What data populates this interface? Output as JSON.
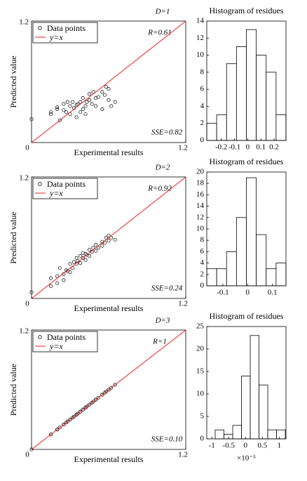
{
  "chart_data": [
    {
      "type": "scatter",
      "title": "D=1",
      "x_label": "Experimental results",
      "y_label": "Predicted value",
      "xlim": [
        0,
        1.2
      ],
      "ylim": [
        0,
        1.2
      ],
      "xticks": [
        0,
        1.2
      ],
      "yticks": [
        1.2
      ],
      "annotations": [
        "R=0.61",
        "SSE=0.82"
      ],
      "series": [
        {
          "name": "Data points",
          "color": "#000000",
          "x": [
            0,
            0.15,
            0.15,
            0.2,
            0.2,
            0.22,
            0.25,
            0.25,
            0.27,
            0.28,
            0.3,
            0.3,
            0.32,
            0.33,
            0.35,
            0.35,
            0.36,
            0.38,
            0.38,
            0.4,
            0.4,
            0.42,
            0.42,
            0.43,
            0.45,
            0.45,
            0.47,
            0.48,
            0.5,
            0.5,
            0.52,
            0.55,
            0.55,
            0.57,
            0.58,
            0.6,
            0.6,
            0.62,
            0.65
          ],
          "values": [
            0.23,
            0.28,
            0.3,
            0.35,
            0.33,
            0.22,
            0.38,
            0.32,
            0.3,
            0.4,
            0.36,
            0.28,
            0.4,
            0.34,
            0.37,
            0.25,
            0.38,
            0.4,
            0.3,
            0.44,
            0.33,
            0.36,
            0.28,
            0.4,
            0.48,
            0.42,
            0.38,
            0.5,
            0.44,
            0.36,
            0.45,
            0.5,
            0.33,
            0.47,
            0.55,
            0.42,
            0.53,
            0.36,
            0.4
          ]
        },
        {
          "name": "y=x",
          "color": "#e8231f",
          "x": [
            0,
            1.2
          ],
          "values": [
            0,
            1.2
          ]
        }
      ]
    },
    {
      "type": "histogram",
      "title": "Histogram of residues",
      "bins": [
        -0.31,
        -0.235,
        -0.16,
        -0.085,
        -0.01,
        0.065,
        0.14,
        0.215,
        0.29
      ],
      "values": [
        2,
        3,
        9,
        11,
        13,
        10,
        8,
        3
      ],
      "xlim": [
        -0.31,
        0.29
      ],
      "ylim": [
        0,
        14
      ],
      "xticks": [
        -0.2,
        -0.1,
        0,
        0.1,
        0.2
      ],
      "yticks": [
        0,
        2,
        4,
        6,
        8,
        10,
        12,
        14
      ]
    },
    {
      "type": "scatter",
      "title": "D=2",
      "x_label": "Experimental results",
      "y_label": "Predicted value",
      "xlim": [
        0,
        1.2
      ],
      "ylim": [
        0,
        1.2
      ],
      "xticks": [
        0,
        1.2
      ],
      "yticks": [
        1.2
      ],
      "annotations": [
        "R=0.92",
        "SSE=0.24"
      ],
      "series": [
        {
          "name": "Data points",
          "color": "#000000",
          "x": [
            0,
            0.15,
            0.15,
            0.2,
            0.2,
            0.22,
            0.25,
            0.25,
            0.27,
            0.28,
            0.3,
            0.3,
            0.32,
            0.33,
            0.35,
            0.35,
            0.36,
            0.38,
            0.38,
            0.4,
            0.4,
            0.42,
            0.42,
            0.43,
            0.45,
            0.45,
            0.47,
            0.48,
            0.5,
            0.5,
            0.52,
            0.55,
            0.55,
            0.57,
            0.58,
            0.6,
            0.6,
            0.62,
            0.65
          ],
          "values": [
            0.06,
            0.2,
            0.12,
            0.22,
            0.15,
            0.3,
            0.24,
            0.18,
            0.28,
            0.27,
            0.34,
            0.26,
            0.3,
            0.36,
            0.34,
            0.4,
            0.37,
            0.35,
            0.42,
            0.4,
            0.45,
            0.38,
            0.44,
            0.43,
            0.48,
            0.42,
            0.46,
            0.5,
            0.47,
            0.53,
            0.5,
            0.52,
            0.56,
            0.55,
            0.6,
            0.57,
            0.62,
            0.6,
            0.58
          ]
        },
        {
          "name": "y=x",
          "color": "#e8231f",
          "x": [
            0,
            1.2
          ],
          "values": [
            0,
            1.2
          ]
        }
      ]
    },
    {
      "type": "histogram",
      "title": "Histogram of residues",
      "bins": [
        -0.165,
        -0.125,
        -0.085,
        -0.045,
        -0.005,
        0.035,
        0.075,
        0.115,
        0.155
      ],
      "values": [
        3,
        3,
        6,
        12,
        19,
        9,
        3,
        4
      ],
      "xlim": [
        -0.165,
        0.155
      ],
      "ylim": [
        0,
        20
      ],
      "xticks": [
        -0.1,
        0,
        0.1
      ],
      "yticks": [
        0,
        2,
        4,
        6,
        8,
        10,
        12,
        14,
        16,
        18,
        20
      ]
    },
    {
      "type": "scatter",
      "title": "D=3",
      "x_label": "Experimental results",
      "y_label": "Predicted value",
      "xlim": [
        0,
        1.2
      ],
      "ylim": [
        0,
        1.2
      ],
      "xticks": [
        0,
        1.2
      ],
      "yticks": [
        1.2
      ],
      "annotations": [
        "R=1",
        "SSE=0.10"
      ],
      "series": [
        {
          "name": "Data points",
          "color": "#000000",
          "x": [
            0,
            0.15,
            0.15,
            0.2,
            0.2,
            0.22,
            0.25,
            0.25,
            0.27,
            0.28,
            0.3,
            0.3,
            0.32,
            0.33,
            0.35,
            0.35,
            0.36,
            0.38,
            0.38,
            0.4,
            0.4,
            0.42,
            0.42,
            0.43,
            0.45,
            0.45,
            0.47,
            0.48,
            0.5,
            0.5,
            0.52,
            0.55,
            0.55,
            0.57,
            0.58,
            0.6,
            0.6,
            0.62,
            0.65
          ],
          "values": [
            0,
            0.15,
            0.15,
            0.2,
            0.2,
            0.22,
            0.25,
            0.25,
            0.27,
            0.28,
            0.3,
            0.3,
            0.32,
            0.33,
            0.35,
            0.35,
            0.36,
            0.38,
            0.38,
            0.4,
            0.4,
            0.42,
            0.42,
            0.43,
            0.45,
            0.45,
            0.47,
            0.48,
            0.5,
            0.5,
            0.52,
            0.55,
            0.55,
            0.57,
            0.58,
            0.6,
            0.6,
            0.62,
            0.65
          ]
        },
        {
          "name": "y=x",
          "color": "#e8231f",
          "x": [
            0,
            1.2
          ],
          "values": [
            0,
            1.2
          ]
        }
      ]
    },
    {
      "type": "histogram",
      "title": "Histogram of residues",
      "x_scale_label": "×10⁻⁵",
      "bins": [
        -0.9,
        -0.64,
        -0.38,
        -0.12,
        0.14,
        0.4,
        0.66,
        0.92,
        1.18
      ],
      "values": [
        2,
        1,
        3,
        14,
        23,
        12,
        2,
        2
      ],
      "xlim": [
        -1.15,
        1.2
      ],
      "ylim": [
        0,
        25
      ],
      "xticks": [
        -1,
        -0.5,
        0,
        0.5,
        1
      ],
      "yticks": [
        0,
        5,
        10,
        15,
        20,
        25
      ]
    }
  ]
}
